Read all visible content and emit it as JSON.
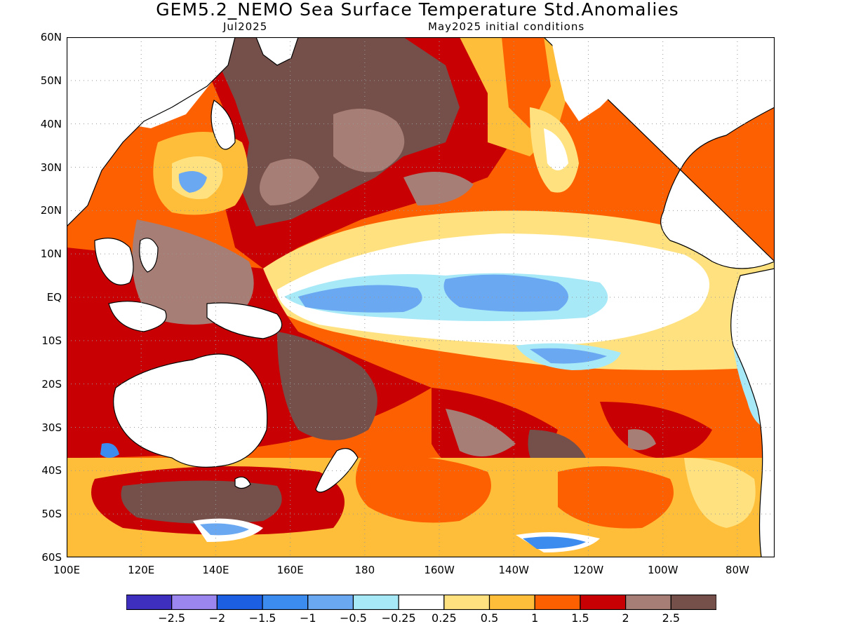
{
  "header": {
    "title": "GEM5.2_NEMO Sea Surface Temperature Std.Anomalies",
    "valid_month": "Jul2025",
    "init_conditions": "May2025 initial conditions"
  },
  "map": {
    "lat_labels": [
      "60N",
      "50N",
      "40N",
      "30N",
      "20N",
      "10N",
      "EQ",
      "10S",
      "20S",
      "30S",
      "40S",
      "50S",
      "60S"
    ],
    "lon_labels": [
      "100E",
      "120E",
      "140E",
      "160E",
      "180",
      "160W",
      "140W",
      "120W",
      "100W",
      "80W"
    ],
    "lon_range": [
      100,
      290
    ],
    "lat_range": [
      -60,
      60
    ],
    "grid": "dotted"
  },
  "colorbar": {
    "colors": [
      "#3f2fbf",
      "#9a86ee",
      "#1d5fe3",
      "#3c8cf0",
      "#6ba8f2",
      "#a8e9f8",
      "#ffffff",
      "#ffe27f",
      "#ffbe3a",
      "#fd6000",
      "#c80004",
      "#a77e75",
      "#75504b"
    ],
    "labels": [
      "−2.5",
      "−2",
      "−1.5",
      "−1",
      "−0.5",
      "−0.25",
      "0.25",
      "0.5",
      "1",
      "1.5",
      "2",
      "2.5"
    ]
  }
}
